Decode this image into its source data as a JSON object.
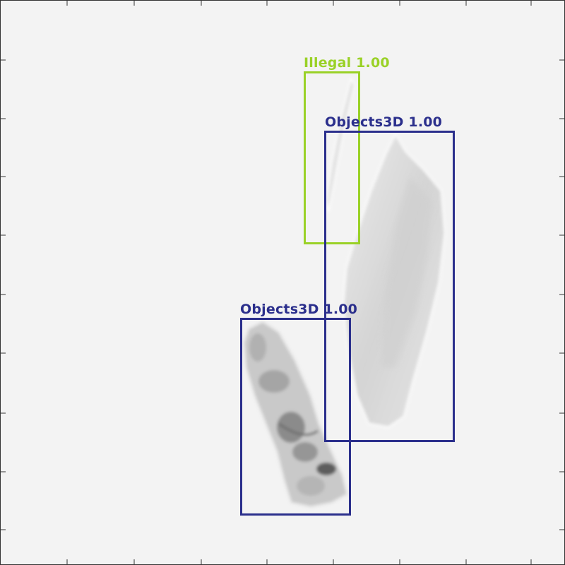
{
  "detections": [
    {
      "label": "Illegal 1.00",
      "color": "#9ad127"
    },
    {
      "label": "Objects3D 1.00",
      "color": "#2b2f8c"
    },
    {
      "label": "Objects3D 1.00",
      "color": "#2b2f8c"
    }
  ]
}
